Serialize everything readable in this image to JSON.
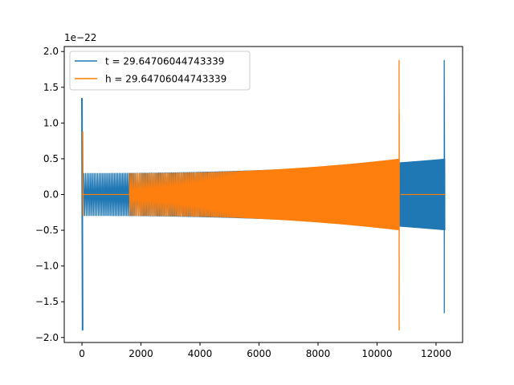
{
  "chart_data": {
    "type": "line",
    "title": "",
    "xlabel": "",
    "ylabel": "",
    "y_offset_label": "1e−22",
    "xlim": [
      -600,
      12900
    ],
    "ylim": [
      -2.07,
      2.07
    ],
    "x_ticks": [
      0,
      2000,
      4000,
      6000,
      8000,
      10000,
      12000
    ],
    "y_ticks": [
      -2.0,
      -1.5,
      -1.0,
      -0.5,
      0.0,
      0.5,
      1.0,
      1.5,
      2.0
    ],
    "x_tick_labels": [
      "0",
      "2000",
      "4000",
      "6000",
      "8000",
      "10000",
      "12000"
    ],
    "y_tick_labels": [
      "−2.0",
      "−1.5",
      "−1.0",
      "−0.5",
      "0.0",
      "0.5",
      "1.0",
      "1.5",
      "2.0"
    ],
    "grid": false,
    "legend_position": "top-left",
    "series": [
      {
        "name": "t = 29.64706044743339",
        "color": "#1f77b4",
        "description_points": {
          "start_spike": {
            "x": 0,
            "ymax": 1.35,
            "ymin": -1.9
          },
          "oscillation_region": {
            "x_start": 0,
            "x_end": 12300,
            "amp_start": 0.3,
            "amp_pre_spike": 0.5
          },
          "merger_spike": {
            "x": 12280,
            "ymax": 1.88,
            "ymin": -1.66
          }
        }
      },
      {
        "name": "h = 29.64706044743339",
        "color": "#ff7f0e",
        "description_points": {
          "start_spike": {
            "x": 0,
            "ymax": 0.88,
            "ymin": -0.3
          },
          "flat_region": {
            "x_start": 0,
            "x_end": 1600,
            "y": 0.0
          },
          "oscillation_region": {
            "x_start": 1600,
            "x_end": 10750,
            "amp_start": 0.3,
            "amp_pre_spike": 0.5
          },
          "merger_spike": {
            "x": 10750,
            "ymax": 1.88,
            "ymin": -1.9
          },
          "flat_tail": {
            "x_start": 10800,
            "x_end": 12300,
            "y": 0.0
          }
        }
      }
    ]
  }
}
